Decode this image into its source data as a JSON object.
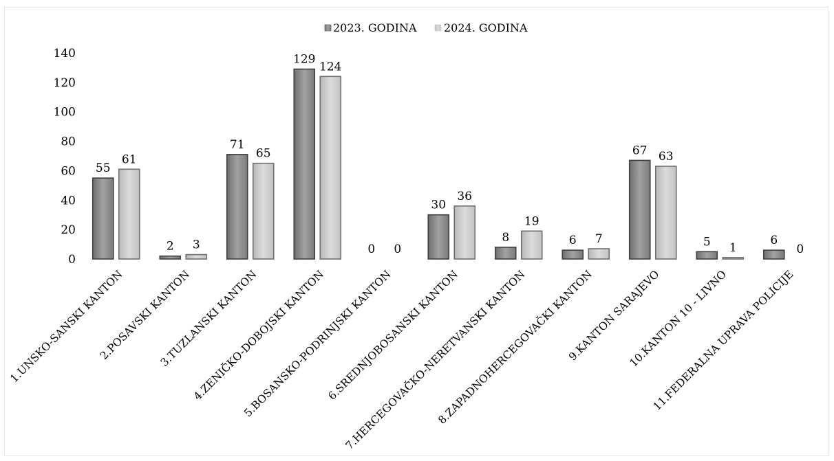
{
  "chart_data": {
    "type": "bar",
    "categories": [
      "1.UNSKO-SANSKI KANTON",
      "2.POSAVSKI KANTON",
      "3.TUZLANSKI KANTON",
      "4.ZENIČKO-DOBOJSKI KANTON",
      "5.BOSANSKO-PODRINJSKI KANTON",
      "6.SREDNJOBOSANSKI KANTON",
      "7.HERCEGOVAČKO-NERETVANSKI KANTON",
      "8.ZAPADNOHERCEGOVAČKI KANTON",
      "9.KANTON SARAJEVO",
      "10.KANTON 10 - LIVNO",
      "11.FEDERALNA UPRAVA POLICIJE"
    ],
    "series": [
      {
        "name": "2023. GODINA",
        "values": [
          55,
          2,
          71,
          129,
          0,
          30,
          8,
          6,
          67,
          5,
          6
        ],
        "color": "#8c8c8c"
      },
      {
        "name": "2024. GODINA",
        "values": [
          61,
          3,
          65,
          124,
          0,
          36,
          19,
          7,
          63,
          1,
          0
        ],
        "color": "#c8c8c8"
      }
    ],
    "yticks": [
      "0",
      "20",
      "40",
      "60",
      "80",
      "100",
      "120",
      "140"
    ],
    "ylim": [
      0,
      140
    ],
    "grid": false,
    "legend_position": "top-center",
    "data_labels": true
  }
}
